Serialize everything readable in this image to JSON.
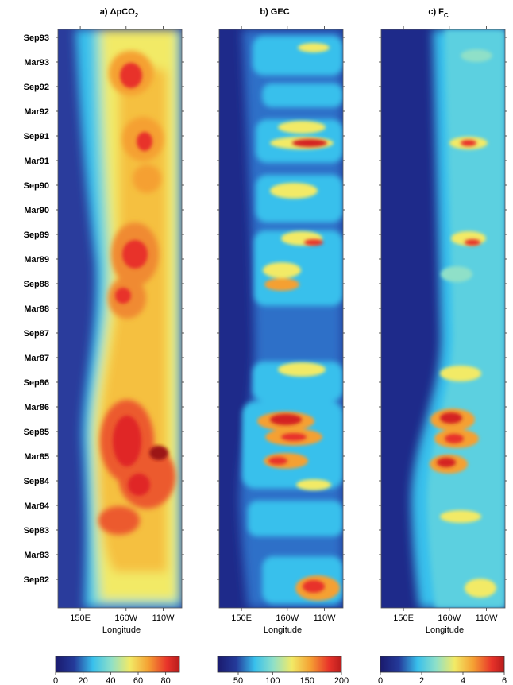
{
  "chart_data": [
    {
      "type": "heatmap",
      "title": "a) ΔpCO",
      "title_sub": "2",
      "xlabel": "Longitude",
      "x_ticks": [
        "150E",
        "160W",
        "110W"
      ],
      "y_ticks": [
        "Sep93",
        "Mar93",
        "Sep92",
        "Mar92",
        "Sep91",
        "Mar91",
        "Sep90",
        "Mar90",
        "Sep89",
        "Mar89",
        "Sep88",
        "Mar88",
        "Sep87",
        "Mar87",
        "Sep86",
        "Mar86",
        "Sep85",
        "Mar85",
        "Sep84",
        "Mar84",
        "Sep83",
        "Mar83",
        "Sep82"
      ],
      "colorbar": {
        "ticks": [
          "0",
          "20",
          "40",
          "60",
          "80"
        ],
        "range": [
          0,
          90
        ]
      },
      "hotspots": [
        {
          "lon_frac": 0.58,
          "date_frac": 0.83,
          "value": 80
        },
        {
          "lon_frac": 0.55,
          "date_frac": 0.72,
          "value": 75
        },
        {
          "lon_frac": 0.57,
          "date_frac": 0.6,
          "value": 78
        },
        {
          "lon_frac": 0.6,
          "date_frac": 0.5,
          "value": 74
        },
        {
          "lon_frac": 0.55,
          "date_frac": 0.34,
          "value": 85
        },
        {
          "lon_frac": 0.78,
          "date_frac": 0.31,
          "value": 90
        },
        {
          "lon_frac": 0.5,
          "date_frac": 0.22,
          "value": 80
        },
        {
          "lon_frac": 0.58,
          "date_frac": 0.12,
          "value": 70
        }
      ]
    },
    {
      "type": "heatmap",
      "title": "b) GEC",
      "xlabel": "Longitude",
      "x_ticks": [
        "150E",
        "160W",
        "110W"
      ],
      "y_ticks": [
        "Sep93",
        "Mar93",
        "Sep92",
        "Mar92",
        "Sep91",
        "Mar91",
        "Sep90",
        "Mar90",
        "Sep89",
        "Mar89",
        "Sep88",
        "Mar88",
        "Sep87",
        "Mar87",
        "Sep86",
        "Mar86",
        "Sep85",
        "Mar85",
        "Sep84",
        "Mar84",
        "Sep83",
        "Mar83",
        "Sep82"
      ],
      "colorbar": {
        "ticks": [
          "50",
          "100",
          "150",
          "200"
        ],
        "range": [
          20,
          200
        ]
      },
      "hotspots": [
        {
          "lon_frac": 0.65,
          "date_frac": 0.8,
          "value": 180
        },
        {
          "lon_frac": 0.6,
          "date_frac": 0.64,
          "value": 160
        },
        {
          "lon_frac": 0.55,
          "date_frac": 0.55,
          "value": 170
        },
        {
          "lon_frac": 0.55,
          "date_frac": 0.37,
          "value": 195
        },
        {
          "lon_frac": 0.6,
          "date_frac": 0.29,
          "value": 185
        },
        {
          "lon_frac": 0.7,
          "date_frac": 0.04,
          "value": 175
        }
      ]
    },
    {
      "type": "heatmap",
      "title": "c) F",
      "title_sub": "C",
      "xlabel": "Longitude",
      "x_ticks": [
        "150E",
        "160W",
        "110W"
      ],
      "y_ticks": [
        "Sep93",
        "Mar93",
        "Sep92",
        "Mar92",
        "Sep91",
        "Mar91",
        "Sep90",
        "Mar90",
        "Sep89",
        "Mar89",
        "Sep88",
        "Mar88",
        "Sep87",
        "Mar87",
        "Sep86",
        "Mar86",
        "Sep85",
        "Mar85",
        "Sep84",
        "Mar84",
        "Sep83",
        "Mar83",
        "Sep82"
      ],
      "colorbar": {
        "ticks": [
          "0",
          "2",
          "4",
          "6"
        ],
        "range": [
          0,
          6
        ]
      },
      "hotspots": [
        {
          "lon_frac": 0.65,
          "date_frac": 0.8,
          "value": 5
        },
        {
          "lon_frac": 0.62,
          "date_frac": 0.64,
          "value": 4.5
        },
        {
          "lon_frac": 0.6,
          "date_frac": 0.37,
          "value": 6
        },
        {
          "lon_frac": 0.55,
          "date_frac": 0.29,
          "value": 5.5
        },
        {
          "lon_frac": 0.65,
          "date_frac": 0.15,
          "value": 4
        }
      ]
    }
  ]
}
